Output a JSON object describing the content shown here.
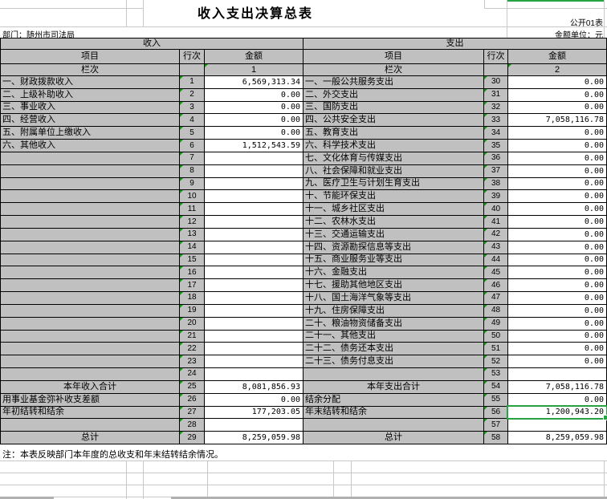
{
  "header": {
    "title": "收入支出决算总表",
    "table_code": "公开01表",
    "department_label": "部门：随州市司法局",
    "unit_label": "金额单位：元"
  },
  "table": {
    "income_section": "收入",
    "expense_section": "支出",
    "col_item": "项目",
    "col_line": "行次",
    "col_amount": "金额",
    "col_index_label": "栏次",
    "income_col_index": "1",
    "expense_col_index": "2",
    "income_rows": [
      {
        "item": "一、财政拨款收入",
        "line": "1",
        "amount": "6,569,313.34"
      },
      {
        "item": "二、上级补助收入",
        "line": "2",
        "amount": "0.00"
      },
      {
        "item": "三、事业收入",
        "line": "3",
        "amount": "0.00"
      },
      {
        "item": "四、经营收入",
        "line": "4",
        "amount": "0.00"
      },
      {
        "item": "五、附属单位上缴收入",
        "line": "5",
        "amount": "0.00"
      },
      {
        "item": "六、其他收入",
        "line": "6",
        "amount": "1,512,543.59"
      },
      {
        "item": "",
        "line": "7",
        "amount": ""
      },
      {
        "item": "",
        "line": "8",
        "amount": ""
      },
      {
        "item": "",
        "line": "9",
        "amount": ""
      },
      {
        "item": "",
        "line": "10",
        "amount": ""
      },
      {
        "item": "",
        "line": "11",
        "amount": ""
      },
      {
        "item": "",
        "line": "12",
        "amount": ""
      },
      {
        "item": "",
        "line": "13",
        "amount": ""
      },
      {
        "item": "",
        "line": "14",
        "amount": ""
      },
      {
        "item": "",
        "line": "15",
        "amount": ""
      },
      {
        "item": "",
        "line": "16",
        "amount": ""
      },
      {
        "item": "",
        "line": "17",
        "amount": ""
      },
      {
        "item": "",
        "line": "18",
        "amount": ""
      },
      {
        "item": "",
        "line": "19",
        "amount": ""
      },
      {
        "item": "",
        "line": "20",
        "amount": ""
      },
      {
        "item": "",
        "line": "21",
        "amount": ""
      },
      {
        "item": "",
        "line": "22",
        "amount": ""
      },
      {
        "item": "",
        "line": "23",
        "amount": ""
      },
      {
        "item": "",
        "line": "24",
        "amount": ""
      },
      {
        "item": "本年收入合计",
        "line": "25",
        "amount": "8,081,856.93",
        "center": true
      },
      {
        "item": "用事业基金弥补收支差额",
        "line": "26",
        "amount": "0.00"
      },
      {
        "item": "年初结转和结余",
        "line": "27",
        "amount": "177,203.05"
      },
      {
        "item": "",
        "line": "28",
        "amount": ""
      },
      {
        "item": "总计",
        "line": "29",
        "amount": "8,259,059.98",
        "center": true
      }
    ],
    "expense_rows": [
      {
        "item": "一、一般公共服务支出",
        "line": "30",
        "amount": "0.00"
      },
      {
        "item": "二、外交支出",
        "line": "31",
        "amount": "0.00"
      },
      {
        "item": "三、国防支出",
        "line": "32",
        "amount": "0.00"
      },
      {
        "item": "四、公共安全支出",
        "line": "33",
        "amount": "7,058,116.78"
      },
      {
        "item": "五、教育支出",
        "line": "34",
        "amount": "0.00"
      },
      {
        "item": "六、科学技术支出",
        "line": "35",
        "amount": "0.00"
      },
      {
        "item": "七、文化体育与传媒支出",
        "line": "36",
        "amount": "0.00"
      },
      {
        "item": "八、社会保障和就业支出",
        "line": "37",
        "amount": "0.00"
      },
      {
        "item": "九、医疗卫生与计划生育支出",
        "line": "38",
        "amount": "0.00"
      },
      {
        "item": "十、节能环保支出",
        "line": "39",
        "amount": "0.00"
      },
      {
        "item": "十一、城乡社区支出",
        "line": "40",
        "amount": "0.00"
      },
      {
        "item": "十二、农林水支出",
        "line": "41",
        "amount": "0.00"
      },
      {
        "item": "十三、交通运输支出",
        "line": "42",
        "amount": "0.00"
      },
      {
        "item": "十四、资源勘探信息等支出",
        "line": "43",
        "amount": "0.00"
      },
      {
        "item": "十五、商业服务业等支出",
        "line": "44",
        "amount": "0.00"
      },
      {
        "item": "十六、金融支出",
        "line": "45",
        "amount": "0.00"
      },
      {
        "item": "十七、援助其他地区支出",
        "line": "46",
        "amount": "0.00"
      },
      {
        "item": "十八、国土海洋气象等支出",
        "line": "47",
        "amount": "0.00"
      },
      {
        "item": "十九、住房保障支出",
        "line": "48",
        "amount": "0.00"
      },
      {
        "item": "二十、粮油物资储备支出",
        "line": "49",
        "amount": "0.00"
      },
      {
        "item": "二十一、其他支出",
        "line": "50",
        "amount": "0.00"
      },
      {
        "item": "二十二、债务还本支出",
        "line": "51",
        "amount": "0.00"
      },
      {
        "item": "二十三、债务付息支出",
        "line": "52",
        "amount": "0.00"
      },
      {
        "item": "",
        "line": "53",
        "amount": ""
      },
      {
        "item": "本年支出合计",
        "line": "54",
        "amount": "7,058,116.78",
        "center": true
      },
      {
        "item": "结余分配",
        "line": "55",
        "amount": "0.00"
      },
      {
        "item": "年末结转和结余",
        "line": "56",
        "amount": "1,200,943.20",
        "selected": true
      },
      {
        "item": "",
        "line": "57",
        "amount": ""
      },
      {
        "item": "总计",
        "line": "58",
        "amount": "8,259,059.98",
        "center": true
      }
    ],
    "selected_cell": {
      "line": "56",
      "value": "1,200,943.20"
    }
  },
  "footnote": "注：本表反映部门本年度的总收支和年末结转结余情况。",
  "colors": {
    "selection_green": "#26A342",
    "triangle_green": "#00A000",
    "cell_gray": "#C0C0C0"
  }
}
